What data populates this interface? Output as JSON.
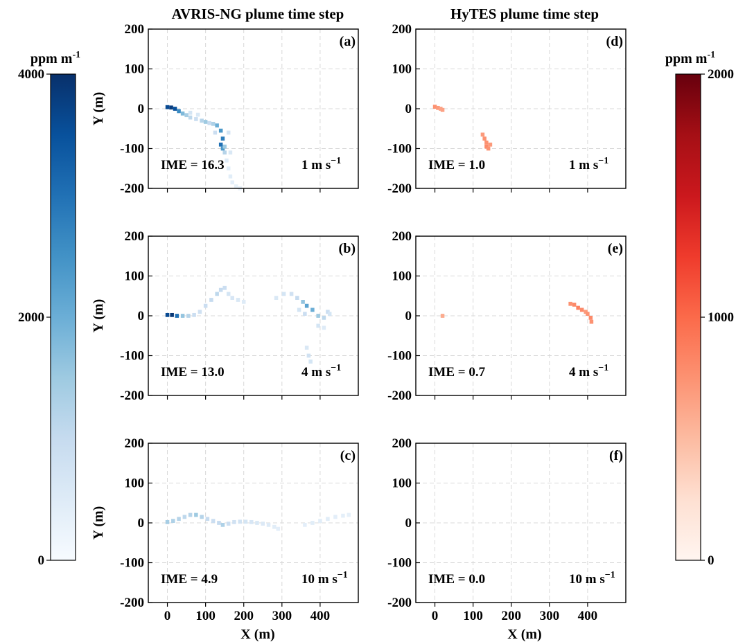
{
  "chart_data": {
    "type": "heatmap",
    "column_titles": [
      "AVRIS-NG plume time step",
      "HyTES plume time step"
    ],
    "xlabel": "X (m)",
    "ylabel": "Y (m)",
    "xlim": [
      -50,
      500
    ],
    "ylim": [
      -200,
      200
    ],
    "x_ticks": [
      0,
      100,
      200,
      300,
      400
    ],
    "y_ticks": [
      -200,
      -100,
      0,
      100,
      200
    ],
    "grid": true,
    "colorbars": [
      {
        "id": "left",
        "colormap": "Blues",
        "unit_base": "ppm m",
        "unit_exp": "-1",
        "range": [
          0,
          4000
        ],
        "tick_values": [
          0,
          2000,
          4000
        ],
        "tick_labels": [
          "0",
          "2000",
          "4000"
        ],
        "color_low": "#f7fbff",
        "color_high": "#08306b"
      },
      {
        "id": "right",
        "colormap": "Reds",
        "unit_base": "ppm m",
        "unit_exp": "-1",
        "range": [
          0,
          2000
        ],
        "tick_values": [
          0,
          1000,
          2000
        ],
        "tick_labels": [
          "0",
          "1000",
          "2000"
        ],
        "color_low": "#fff5f0",
        "color_high": "#67000d"
      }
    ],
    "panels": [
      {
        "label": "(a)",
        "instrument": "AVRIS-NG",
        "colormap": "Blues",
        "row": 0,
        "col": 0,
        "ime_text": "IME = 16.3",
        "wind_base": "1 m s",
        "wind_exp": "−1",
        "plume": [
          [
            0,
            4,
            3600
          ],
          [
            10,
            3,
            3800
          ],
          [
            20,
            0,
            3500
          ],
          [
            30,
            -6,
            2600
          ],
          [
            40,
            -12,
            1800
          ],
          [
            50,
            -16,
            1400
          ],
          [
            60,
            -22,
            1100
          ],
          [
            75,
            -26,
            900
          ],
          [
            90,
            -30,
            1200
          ],
          [
            100,
            -33,
            1500
          ],
          [
            110,
            -36,
            1000
          ],
          [
            120,
            -38,
            1300
          ],
          [
            130,
            -42,
            2000
          ],
          [
            140,
            -55,
            2400
          ],
          [
            145,
            -75,
            2800
          ],
          [
            140,
            -90,
            3000
          ],
          [
            145,
            -100,
            2400
          ],
          [
            150,
            -110,
            1200
          ],
          [
            165,
            -110,
            600
          ],
          [
            155,
            -130,
            500
          ],
          [
            160,
            -150,
            450
          ],
          [
            165,
            -170,
            450
          ],
          [
            170,
            -185,
            400
          ],
          [
            180,
            -195,
            350
          ],
          [
            190,
            -200,
            300
          ],
          [
            60,
            -10,
            700
          ],
          [
            80,
            -15,
            600
          ],
          [
            125,
            -60,
            900
          ],
          [
            160,
            -60,
            700
          ],
          [
            150,
            -95,
            1500
          ]
        ]
      },
      {
        "label": "(b)",
        "instrument": "AVRIS-NG",
        "colormap": "Blues",
        "row": 1,
        "col": 0,
        "ime_text": "IME = 13.0",
        "wind_base": "4 m s",
        "wind_exp": "−1",
        "plume": [
          [
            0,
            2,
            3600
          ],
          [
            12,
            2,
            3900
          ],
          [
            25,
            0,
            3000
          ],
          [
            40,
            0,
            1600
          ],
          [
            55,
            0,
            1200
          ],
          [
            70,
            2,
            900
          ],
          [
            85,
            10,
            800
          ],
          [
            100,
            25,
            900
          ],
          [
            115,
            40,
            1000
          ],
          [
            130,
            55,
            1100
          ],
          [
            140,
            65,
            1000
          ],
          [
            150,
            70,
            900
          ],
          [
            160,
            55,
            700
          ],
          [
            170,
            45,
            650
          ],
          [
            185,
            40,
            600
          ],
          [
            200,
            35,
            500
          ],
          [
            285,
            45,
            600
          ],
          [
            305,
            55,
            700
          ],
          [
            325,
            55,
            800
          ],
          [
            340,
            45,
            1000
          ],
          [
            355,
            35,
            1600
          ],
          [
            365,
            25,
            2200
          ],
          [
            380,
            15,
            2000
          ],
          [
            395,
            0,
            1500
          ],
          [
            410,
            -5,
            1100
          ],
          [
            420,
            10,
            900
          ],
          [
            425,
            5,
            700
          ],
          [
            365,
            -80,
            600
          ],
          [
            370,
            -100,
            800
          ],
          [
            375,
            -115,
            700
          ],
          [
            395,
            -25,
            700
          ],
          [
            410,
            -30,
            500
          ],
          [
            360,
            5,
            900
          ],
          [
            345,
            15,
            700
          ]
        ]
      },
      {
        "label": "(c)",
        "instrument": "AVRIS-NG",
        "colormap": "Blues",
        "row": 2,
        "col": 0,
        "ime_text": "IME = 4.9",
        "wind_base": "10 m s",
        "wind_exp": "−1",
        "plume": [
          [
            0,
            2,
            1400
          ],
          [
            15,
            5,
            1300
          ],
          [
            30,
            10,
            1200
          ],
          [
            45,
            15,
            1100
          ],
          [
            60,
            20,
            1200
          ],
          [
            75,
            20,
            1500
          ],
          [
            90,
            15,
            1200
          ],
          [
            105,
            10,
            1000
          ],
          [
            120,
            5,
            900
          ],
          [
            135,
            0,
            1000
          ],
          [
            145,
            -5,
            1300
          ],
          [
            160,
            -2,
            900
          ],
          [
            175,
            2,
            800
          ],
          [
            190,
            3,
            750
          ],
          [
            205,
            3,
            700
          ],
          [
            220,
            2,
            650
          ],
          [
            235,
            0,
            600
          ],
          [
            250,
            -2,
            550
          ],
          [
            265,
            -5,
            500
          ],
          [
            280,
            -10,
            450
          ],
          [
            290,
            -15,
            400
          ],
          [
            360,
            -5,
            400
          ],
          [
            380,
            0,
            450
          ],
          [
            400,
            5,
            450
          ],
          [
            420,
            10,
            450
          ],
          [
            440,
            15,
            400
          ],
          [
            460,
            18,
            380
          ],
          [
            475,
            20,
            350
          ]
        ]
      },
      {
        "label": "(d)",
        "instrument": "HyTES",
        "colormap": "Reds",
        "row": 0,
        "col": 1,
        "ime_text": "IME = 1.0",
        "wind_base": "1 m s",
        "wind_exp": "−1",
        "plume": [
          [
            0,
            5,
            750
          ],
          [
            8,
            2,
            700
          ],
          [
            15,
            0,
            650
          ],
          [
            20,
            -3,
            650
          ],
          [
            125,
            -65,
            700
          ],
          [
            130,
            -75,
            750
          ],
          [
            135,
            -85,
            750
          ],
          [
            135,
            -95,
            800
          ],
          [
            140,
            -100,
            750
          ],
          [
            145,
            -90,
            700
          ]
        ]
      },
      {
        "label": "(e)",
        "instrument": "HyTES",
        "colormap": "Reds",
        "row": 1,
        "col": 1,
        "ime_text": "IME = 0.7",
        "wind_base": "4 m s",
        "wind_exp": "−1",
        "plume": [
          [
            20,
            0,
            600
          ],
          [
            355,
            30,
            750
          ],
          [
            365,
            28,
            800
          ],
          [
            375,
            20,
            850
          ],
          [
            385,
            15,
            800
          ],
          [
            395,
            10,
            700
          ],
          [
            400,
            5,
            750
          ],
          [
            408,
            -5,
            800
          ],
          [
            410,
            -15,
            750
          ]
        ]
      },
      {
        "label": "(f)",
        "instrument": "HyTES",
        "colormap": "Reds",
        "row": 2,
        "col": 1,
        "ime_text": "IME = 0.0",
        "wind_base": "10 m s",
        "wind_exp": "−1",
        "plume": []
      }
    ]
  }
}
